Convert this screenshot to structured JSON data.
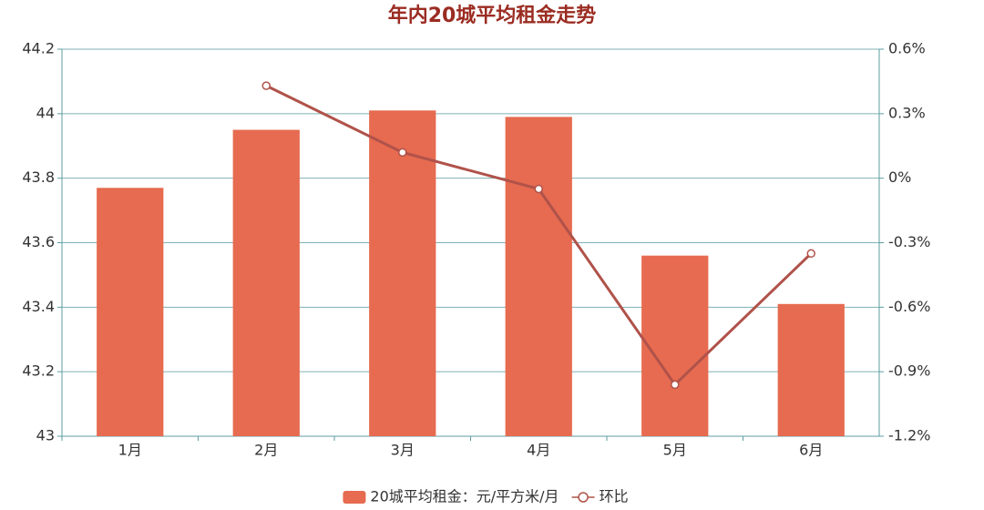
{
  "chart_data": {
    "type": "bar",
    "title": "年内20城平均租金走势",
    "categories": [
      "1月",
      "2月",
      "3月",
      "4月",
      "5月",
      "6月"
    ],
    "series": [
      {
        "name": "20城平均租金：元/平方米/月",
        "type": "bar",
        "color": "#e66b50",
        "values": [
          43.77,
          43.95,
          44.01,
          43.99,
          43.56,
          43.41
        ]
      },
      {
        "name": "环比",
        "type": "line",
        "axis": "y2",
        "color": "#b0524a",
        "values": [
          null,
          0.43,
          0.12,
          -0.05,
          -0.96,
          -0.35
        ]
      }
    ],
    "ylim": [
      43,
      44.2
    ],
    "yticks": [
      43,
      43.2,
      43.4,
      43.6,
      43.8,
      44,
      44.2
    ],
    "y2lim": [
      -1.2,
      0.6
    ],
    "y2ticks": [
      {
        "value": -1.2,
        "label": "-1.2%"
      },
      {
        "value": -0.9,
        "label": "-0.9%"
      },
      {
        "value": -0.6,
        "label": "-0.6%"
      },
      {
        "value": -0.3,
        "label": "-0.3%"
      },
      {
        "value": 0,
        "label": "0%"
      },
      {
        "value": 0.3,
        "label": "0.3%"
      },
      {
        "value": 0.6,
        "label": "0.6%"
      }
    ],
    "grid": true,
    "legend": "bottom"
  }
}
